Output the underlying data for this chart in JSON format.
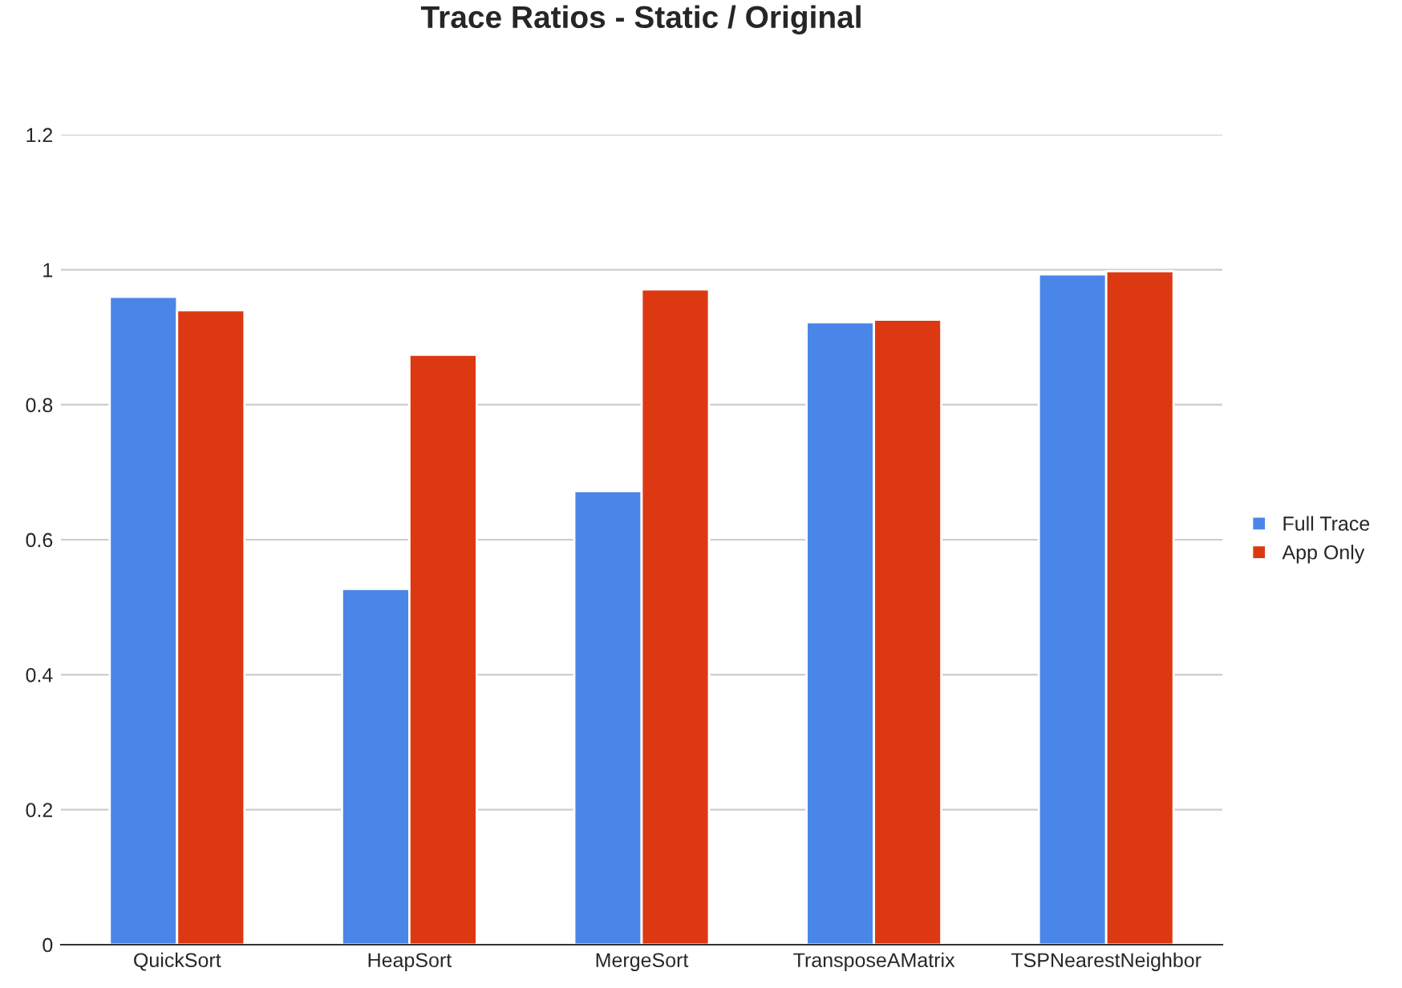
{
  "chart_data": {
    "type": "bar",
    "title": "Trace Ratios - Static / Original",
    "categories": [
      "QuickSort",
      "HeapSort",
      "MergeSort",
      "TransposeAMatrix",
      "TSPNearestNeighbor"
    ],
    "series": [
      {
        "name": "Full Trace",
        "color": "#4a86e8",
        "values": [
          0.96,
          0.527,
          0.672,
          0.922,
          0.993
        ]
      },
      {
        "name": "App Only",
        "color": "#dc3912",
        "values": [
          0.94,
          0.874,
          0.971,
          0.926,
          0.998
        ]
      }
    ],
    "ylim": [
      0,
      1.2
    ],
    "yticks": [
      0,
      0.2,
      0.4,
      0.6,
      0.8,
      1,
      1.2
    ],
    "grid": "y",
    "legend": "right"
  }
}
